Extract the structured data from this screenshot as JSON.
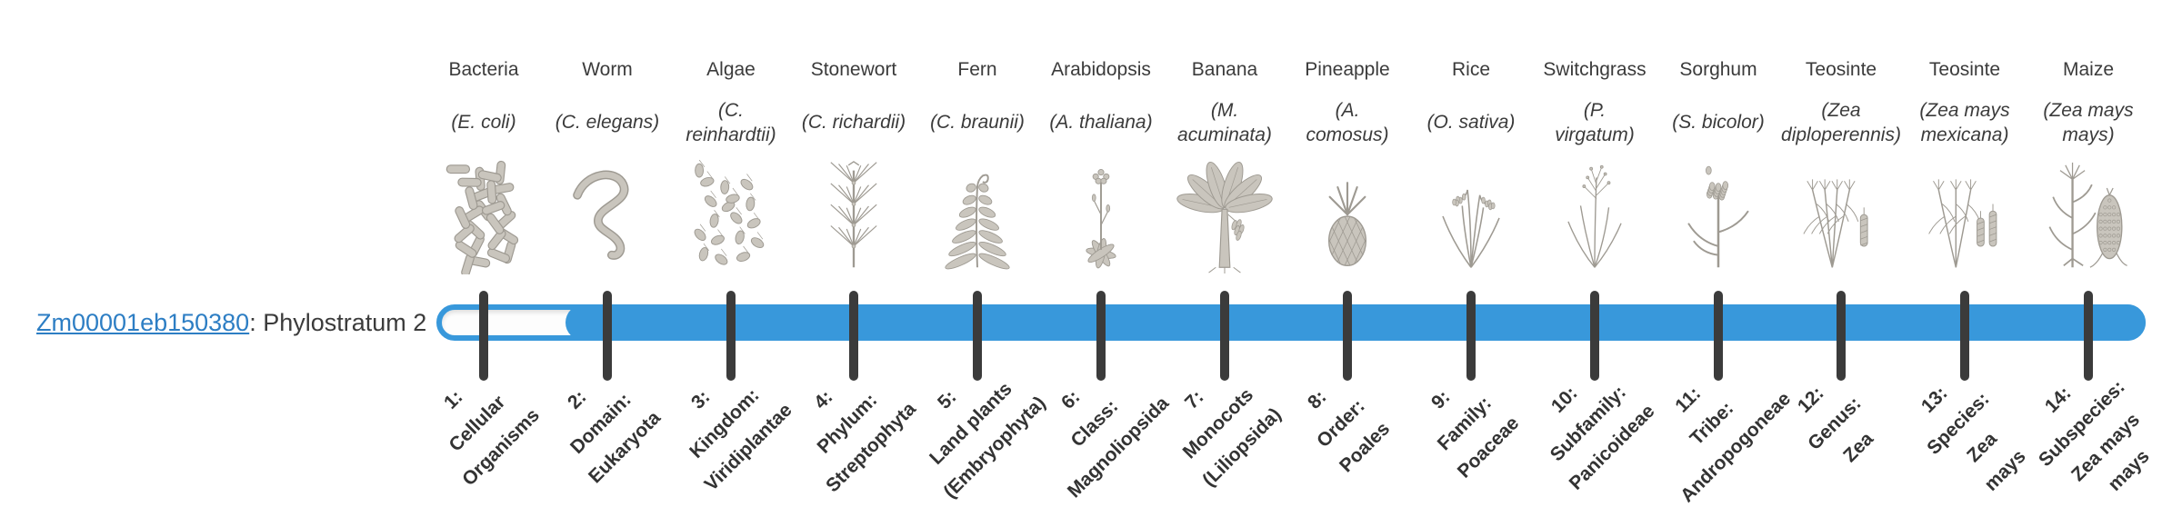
{
  "gene": {
    "id": "Zm00001eb150380",
    "suffix": ": Phylostratum 2",
    "phylostratum": 2
  },
  "diagram": {
    "bar_color": "#3898db",
    "track_color": "#fdfdfd",
    "tick_color": "#3b3b3b",
    "link_color": "#2d7ec4",
    "text_color": "#3b3b3b",
    "filled_from_phylostratum": 2,
    "taxa": [
      {
        "organism": "Bacteria",
        "sci_lines": [
          "(E. coli)"
        ],
        "icon": "bacteria-icon",
        "stratum_lines": [
          "1:",
          "Cellular",
          "Organisms"
        ]
      },
      {
        "organism": "Worm",
        "sci_lines": [
          "(C. elegans)"
        ],
        "icon": "worm-icon",
        "stratum_lines": [
          "2:",
          "Domain:",
          "Eukaryota"
        ]
      },
      {
        "organism": "Algae",
        "sci_lines": [
          "(C.",
          "reinhardtii)"
        ],
        "icon": "algae-icon",
        "stratum_lines": [
          "3:",
          "Kingdom:",
          "Viridiplantae"
        ]
      },
      {
        "organism": "Stonewort",
        "sci_lines": [
          "(C. richardii)"
        ],
        "icon": "stonewort-icon",
        "stratum_lines": [
          "4:",
          "Phylum:",
          "Streptophyta"
        ]
      },
      {
        "organism": "Fern",
        "sci_lines": [
          "(C. braunii)"
        ],
        "icon": "fern-icon",
        "stratum_lines": [
          "5:",
          "Land plants",
          "(Embryophyta)"
        ]
      },
      {
        "organism": "Arabidopsis",
        "sci_lines": [
          "(A. thaliana)"
        ],
        "icon": "arabidopsis-icon",
        "stratum_lines": [
          "6:",
          "Class:",
          "Magnoliopsida"
        ]
      },
      {
        "organism": "Banana",
        "sci_lines": [
          "(M.",
          "acuminata)"
        ],
        "icon": "banana-icon",
        "stratum_lines": [
          "7:",
          "Monocots",
          "(Liliopsida)"
        ]
      },
      {
        "organism": "Pineapple",
        "sci_lines": [
          "(A.",
          "comosus)"
        ],
        "icon": "pineapple-icon",
        "stratum_lines": [
          "8:",
          "Order:",
          "Poales"
        ]
      },
      {
        "organism": "Rice",
        "sci_lines": [
          "(O. sativa)"
        ],
        "icon": "rice-icon",
        "stratum_lines": [
          "9:",
          "Family:",
          "Poaceae"
        ]
      },
      {
        "organism": "Switchgrass",
        "sci_lines": [
          "(P.",
          "virgatum)"
        ],
        "icon": "switchgrass-icon",
        "stratum_lines": [
          "10:",
          "Subfamily:",
          "Panicoideae"
        ]
      },
      {
        "organism": "Sorghum",
        "sci_lines": [
          "(S. bicolor)"
        ],
        "icon": "sorghum-icon",
        "stratum_lines": [
          "11:",
          "Tribe:",
          "Andropogoneae"
        ]
      },
      {
        "organism": "Teosinte",
        "sci_lines": [
          "(Zea",
          "diploperennis)"
        ],
        "icon": "teosinte-diploperennis-icon",
        "stratum_lines": [
          "12:",
          "Genus:",
          "Zea"
        ]
      },
      {
        "organism": "Teosinte",
        "sci_lines": [
          "(Zea mays",
          "mexicana)"
        ],
        "icon": "teosinte-mexicana-icon",
        "stratum_lines": [
          "13:",
          "Species:",
          "Zea",
          "mays"
        ]
      },
      {
        "organism": "Maize",
        "sci_lines": [
          "(Zea mays",
          "mays)"
        ],
        "icon": "maize-icon",
        "stratum_lines": [
          "14:",
          "Subspecies:",
          "Zea mays",
          "mays"
        ]
      }
    ]
  }
}
